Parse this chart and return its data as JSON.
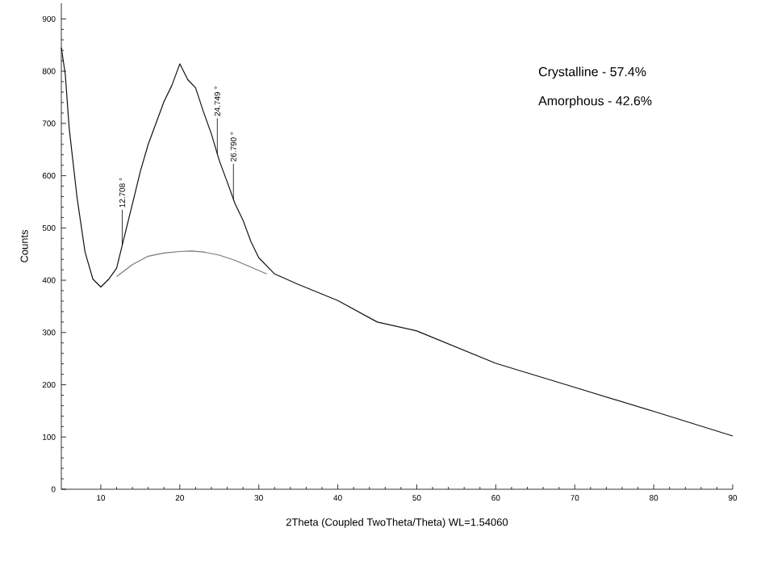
{
  "chart_data": {
    "type": "line",
    "xlabel": "2Theta (Coupled TwoTheta/Theta) WL=1.54060",
    "ylabel": "Counts",
    "xlim": [
      5,
      90
    ],
    "ylim": [
      0,
      930
    ],
    "xticks": [
      10,
      20,
      30,
      40,
      50,
      60,
      70,
      80,
      90
    ],
    "yticks": [
      0,
      100,
      200,
      300,
      400,
      500,
      600,
      700,
      800,
      900
    ],
    "grid": false,
    "marker": "none",
    "line_style": "solid",
    "series": [
      {
        "color": "#111111",
        "x": [
          5,
          5.5,
          6,
          7,
          8,
          9,
          10,
          11,
          12,
          13,
          14,
          15,
          16,
          17,
          18,
          19,
          20,
          21,
          22,
          23,
          24,
          25,
          26,
          27,
          28,
          29,
          30,
          32,
          35,
          40,
          45,
          50,
          60,
          70,
          80,
          90
        ],
        "values": [
          845,
          794,
          690,
          557,
          454,
          402,
          387,
          402,
          423,
          485,
          546,
          608,
          660,
          701,
          742,
          773,
          814,
          784,
          768,
          722,
          680,
          629,
          588,
          546,
          515,
          474,
          443,
          412,
          392,
          361,
          320,
          303,
          241,
          195,
          149,
          102
        ]
      },
      {
        "color": "#777777",
        "x": [
          12,
          14,
          16,
          18,
          20,
          21.5,
          23,
          25,
          27,
          29,
          31
        ],
        "values": [
          407,
          430,
          446,
          452,
          455,
          456,
          454,
          448,
          438,
          425,
          412
        ]
      }
    ],
    "annotations": [
      {
        "text": "12.708 °",
        "x": 12.708,
        "y": 467
      },
      {
        "text": "24.749 °",
        "x": 24.749,
        "y": 642
      },
      {
        "text": "26.790 °",
        "x": 26.79,
        "y": 555
      },
      "Crystalline - 57.4%",
      "Amorphous - 42.6%"
    ]
  }
}
